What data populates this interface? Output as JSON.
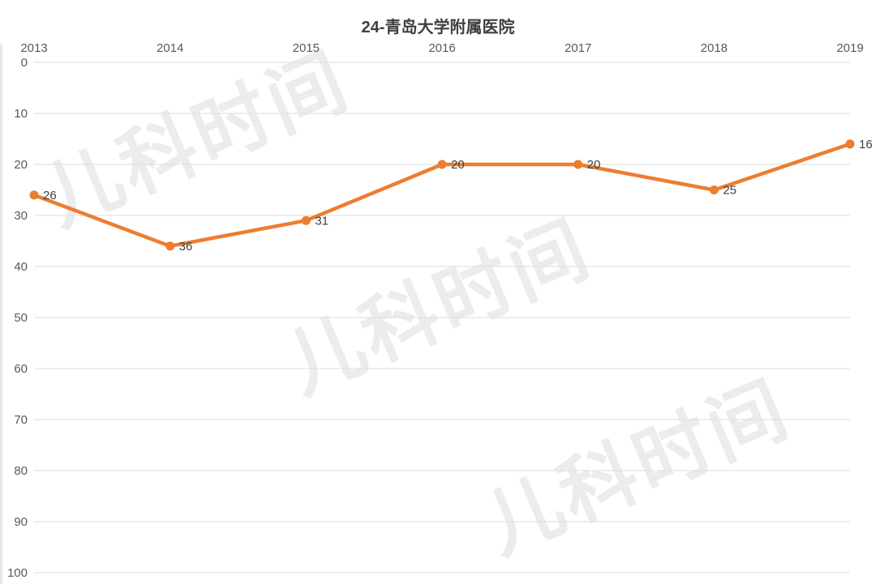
{
  "title": "24-青岛大学附属医院",
  "watermark": {
    "text": "儿科时间",
    "color": "#ececec",
    "count": 3
  },
  "colors": {
    "background": "#ffffff",
    "line": "#ED7D31",
    "marker": "#ED7D31",
    "grid": "#dedede",
    "axis_text": "#595959",
    "data_label_text": "#3f3f3f",
    "title_text": "#3f3f3f"
  },
  "chart_data": {
    "type": "line",
    "title": "24-青岛大学附属医院",
    "categories": [
      "2013",
      "2014",
      "2015",
      "2016",
      "2017",
      "2018",
      "2019"
    ],
    "values": [
      26,
      36,
      31,
      20,
      20,
      25,
      16
    ],
    "data_labels": [
      "26",
      "36",
      "31",
      "20",
      "20",
      "25",
      "16"
    ],
    "y_ticks": [
      "0",
      "10",
      "20",
      "30",
      "40",
      "50",
      "60",
      "70",
      "80",
      "90",
      "100"
    ],
    "ylim": [
      0,
      100
    ],
    "y_axis_inverted": true,
    "x_axis_position": "top",
    "grid": "horizontal-only",
    "legend": "none",
    "series_color": "#ED7D31",
    "marker": "circle"
  }
}
